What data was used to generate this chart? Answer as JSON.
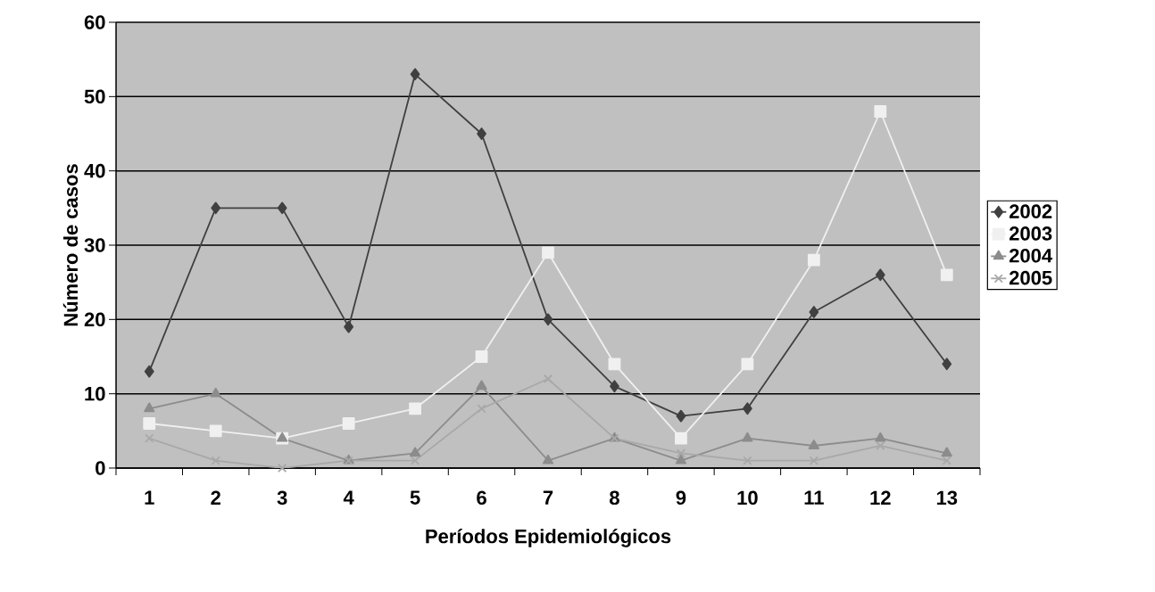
{
  "chart_data": {
    "type": "line",
    "xlabel": "Períodos Epidemiológicos",
    "ylabel": "Número de casos",
    "categories": [
      "1",
      "2",
      "3",
      "4",
      "5",
      "6",
      "7",
      "8",
      "9",
      "10",
      "11",
      "12",
      "13"
    ],
    "series": [
      {
        "name": "2002",
        "color": "#404040",
        "marker": "diamond",
        "values": [
          13,
          35,
          35,
          19,
          53,
          45,
          20,
          11,
          7,
          8,
          21,
          26,
          14
        ]
      },
      {
        "name": "2003",
        "color": "#f0f0f0",
        "marker": "square",
        "values": [
          6,
          5,
          4,
          6,
          8,
          15,
          29,
          14,
          4,
          14,
          28,
          48,
          26
        ]
      },
      {
        "name": "2004",
        "color": "#8c8c8c",
        "marker": "triangle",
        "values": [
          8,
          10,
          4,
          1,
          2,
          11,
          1,
          4,
          1,
          4,
          3,
          4,
          2
        ]
      },
      {
        "name": "2005",
        "color": "#a8a8a8",
        "marker": "cross",
        "values": [
          4,
          1,
          0,
          1,
          1,
          8,
          12,
          4,
          2,
          1,
          1,
          3,
          1
        ]
      }
    ],
    "ylim": [
      0,
      60
    ],
    "yticks": [
      0,
      10,
      20,
      30,
      40,
      50,
      60
    ],
    "grid": "y",
    "legend": "right",
    "line_style": "solid"
  }
}
